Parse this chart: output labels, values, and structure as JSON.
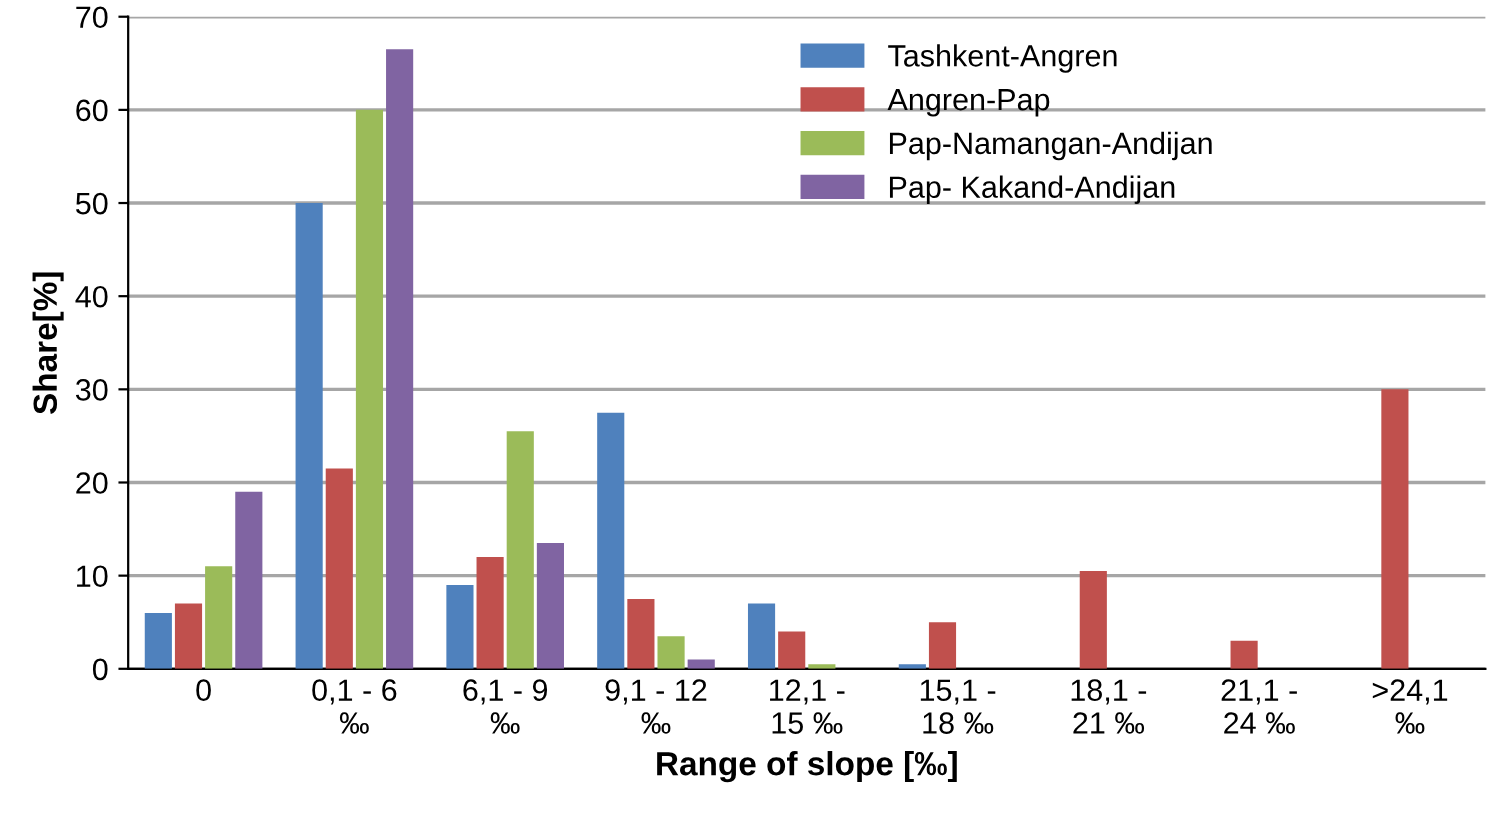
{
  "chart_data": {
    "type": "bar",
    "xlabel": "Range of slope [‰]",
    "ylabel": "Share[%]",
    "categories": [
      "0",
      "0,1 - 6\n‰",
      "6,1 - 9\n‰",
      "9,1 - 12\n‰",
      "12,1 -\n15 ‰",
      "15,1 -\n18 ‰",
      "18,1 -\n21 ‰",
      "21,1 -\n24 ‰",
      ">24,1\n‰"
    ],
    "series": [
      {
        "name": "Tashkent-Angren",
        "color": "#4f81bd",
        "values": [
          6,
          50,
          9,
          27.5,
          7,
          0.5,
          null,
          null,
          null
        ]
      },
      {
        "name": "Angren-Pap",
        "color": "#c0504d",
        "values": [
          7,
          21.5,
          12,
          7.5,
          4,
          5,
          10.5,
          3,
          30
        ]
      },
      {
        "name": "Pap-Namangan-Andijan",
        "color": "#9bbb59",
        "values": [
          11,
          60,
          25.5,
          3.5,
          0.5,
          null,
          null,
          null,
          null
        ]
      },
      {
        "name": "Pap- Kakand-Andijan",
        "color": "#8064a2",
        "values": [
          19,
          66.5,
          13.5,
          1,
          null,
          null,
          null,
          null,
          null
        ]
      }
    ],
    "ylim": [
      0,
      70
    ],
    "yticks": [
      0,
      10,
      20,
      30,
      40,
      50,
      60,
      70
    ],
    "grid": "y",
    "legend": "top right"
  }
}
